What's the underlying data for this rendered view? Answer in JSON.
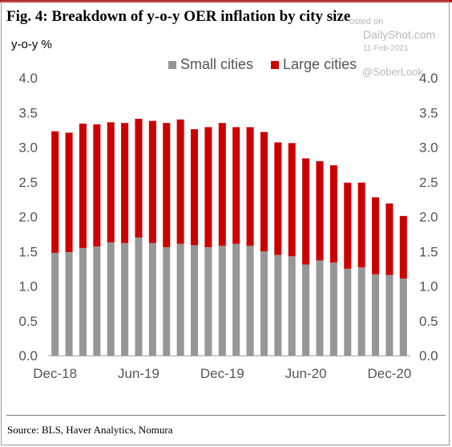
{
  "title": "Fig. 4:  Breakdown of y-o-y OER inflation by city size",
  "watermark": {
    "posted": "osted on",
    "site": "DailyShot.com",
    "date": "11-Feb-2021",
    "handle": "@SoberLook"
  },
  "source": "Source: BLS, Haver Analytics, Nomura",
  "colors": {
    "small": "#979797",
    "large": "#cc0000",
    "accent": "#c00000"
  },
  "chart_data": {
    "type": "bar",
    "stacked": true,
    "ylabel": "y-o-y %",
    "ylim": [
      0,
      4.0
    ],
    "yticks": [
      "0.0",
      "0.5",
      "1.0",
      "1.5",
      "2.0",
      "2.5",
      "3.0",
      "3.5",
      "4.0"
    ],
    "ytick_values": [
      0,
      0.5,
      1.0,
      1.5,
      2.0,
      2.5,
      3.0,
      3.5,
      4.0
    ],
    "secondary_axis": true,
    "legend_position": "top",
    "grid": false,
    "categories": [
      "Dec-18",
      "Jan-19",
      "Feb-19",
      "Mar-19",
      "Apr-19",
      "May-19",
      "Jun-19",
      "Jul-19",
      "Aug-19",
      "Sep-19",
      "Oct-19",
      "Nov-19",
      "Dec-19",
      "Jan-20",
      "Feb-20",
      "Mar-20",
      "Apr-20",
      "May-20",
      "Jun-20",
      "Jul-20",
      "Aug-20",
      "Sep-20",
      "Oct-20",
      "Nov-20",
      "Dec-20",
      "Jan-21"
    ],
    "xtick_labels": [
      {
        "label": "Dec-18",
        "index": 0
      },
      {
        "label": "Jun-19",
        "index": 6
      },
      {
        "label": "Dec-19",
        "index": 12
      },
      {
        "label": "Jun-20",
        "index": 18
      },
      {
        "label": "Dec-20",
        "index": 24
      }
    ],
    "series": [
      {
        "name": "Small cities",
        "values": [
          1.48,
          1.49,
          1.55,
          1.57,
          1.63,
          1.62,
          1.7,
          1.62,
          1.56,
          1.61,
          1.59,
          1.56,
          1.58,
          1.61,
          1.58,
          1.5,
          1.45,
          1.43,
          1.31,
          1.37,
          1.34,
          1.25,
          1.27,
          1.17,
          1.16,
          1.11
        ]
      },
      {
        "name": "Large cities",
        "values": [
          1.75,
          1.72,
          1.79,
          1.76,
          1.73,
          1.73,
          1.71,
          1.76,
          1.79,
          1.79,
          1.67,
          1.73,
          1.77,
          1.68,
          1.71,
          1.72,
          1.62,
          1.63,
          1.53,
          1.43,
          1.4,
          1.24,
          1.22,
          1.11,
          1.03,
          0.9
        ]
      }
    ],
    "totals": [
      3.23,
      3.21,
      3.34,
      3.33,
      3.36,
      3.35,
      3.41,
      3.38,
      3.35,
      3.4,
      3.26,
      3.29,
      3.35,
      3.29,
      3.29,
      3.22,
      3.07,
      3.06,
      2.84,
      2.8,
      2.74,
      2.49,
      2.49,
      2.28,
      2.19,
      2.01
    ]
  }
}
